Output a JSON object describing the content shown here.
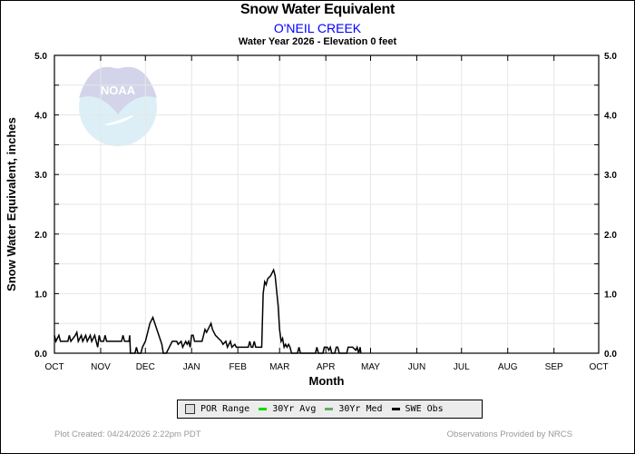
{
  "colors": {
    "obs": "#000000",
    "avg": "#00dd00",
    "med": "#66aa66",
    "station": "#0000ff"
  },
  "footer": {
    "created": "Plot Created: 04/24/2026 2:22pm PDT",
    "provider": "Observations Provided by NRCS"
  },
  "logo_text": "NOAA",
  "chart_data": {
    "type": "line",
    "title": "Snow Water Equivalent",
    "station": "O'NEIL CREEK",
    "subtitle": "Water Year 2026 -  Elevation 0 feet",
    "xlabel": "Month",
    "ylabel": "Snow Water Equivalent, inches",
    "ylim": [
      0,
      5
    ],
    "xlim_days": [
      0,
      365
    ],
    "yticks": [
      "0.0",
      "1.0",
      "2.0",
      "3.0",
      "4.0",
      "5.0"
    ],
    "month_ticks": [
      {
        "label": "OCT",
        "day": 0
      },
      {
        "label": "NOV",
        "day": 31
      },
      {
        "label": "DEC",
        "day": 61
      },
      {
        "label": "JAN",
        "day": 92
      },
      {
        "label": "FEB",
        "day": 123
      },
      {
        "label": "MAR",
        "day": 151
      },
      {
        "label": "APR",
        "day": 182
      },
      {
        "label": "MAY",
        "day": 212
      },
      {
        "label": "JUN",
        "day": 243
      },
      {
        "label": "JUL",
        "day": 273
      },
      {
        "label": "AUG",
        "day": 304
      },
      {
        "label": "SEP",
        "day": 335
      },
      {
        "label": "OCT",
        "day": 365
      }
    ],
    "legend": [
      "POR Range",
      "30Yr Avg",
      "30Yr Med",
      "SWE Obs"
    ],
    "legend_placement": "bottom",
    "series": [
      {
        "name": "SWE Obs",
        "points": [
          [
            0,
            0.3
          ],
          [
            1,
            0.2
          ],
          [
            3,
            0.3
          ],
          [
            4,
            0.2
          ],
          [
            9,
            0.2
          ],
          [
            10,
            0.3
          ],
          [
            11,
            0.2
          ],
          [
            14,
            0.3
          ],
          [
            15,
            0.35
          ],
          [
            16,
            0.2
          ],
          [
            18,
            0.3
          ],
          [
            19,
            0.2
          ],
          [
            21,
            0.3
          ],
          [
            22,
            0.2
          ],
          [
            24,
            0.3
          ],
          [
            25,
            0.2
          ],
          [
            27,
            0.3
          ],
          [
            28,
            0.2
          ],
          [
            29,
            0.1
          ],
          [
            30,
            0.3
          ],
          [
            31,
            0.2
          ],
          [
            33,
            0.2
          ],
          [
            34,
            0.3
          ],
          [
            35,
            0.2
          ],
          [
            45,
            0.2
          ],
          [
            46,
            0.3
          ],
          [
            47,
            0.2
          ],
          [
            50,
            0.2
          ],
          [
            50.5,
            0.3
          ],
          [
            51,
            0.0
          ],
          [
            54,
            0.0
          ],
          [
            55,
            0.1
          ],
          [
            56,
            0.0
          ],
          [
            58,
            0.0
          ],
          [
            59,
            0.1
          ],
          [
            61,
            0.2
          ],
          [
            63,
            0.4
          ],
          [
            64,
            0.5
          ],
          [
            65,
            0.55
          ],
          [
            66,
            0.6
          ],
          [
            68,
            0.45
          ],
          [
            70,
            0.3
          ],
          [
            72,
            0.15
          ],
          [
            73,
            0.0
          ],
          [
            75,
            0.0
          ],
          [
            77,
            0.1
          ],
          [
            79,
            0.2
          ],
          [
            82,
            0.2
          ],
          [
            83,
            0.15
          ],
          [
            85,
            0.2
          ],
          [
            86,
            0.1
          ],
          [
            88,
            0.2
          ],
          [
            89,
            0.15
          ],
          [
            90,
            0.2
          ],
          [
            91,
            0.1
          ],
          [
            92,
            0.3
          ],
          [
            93,
            0.3
          ],
          [
            94,
            0.2
          ],
          [
            99,
            0.2
          ],
          [
            100,
            0.3
          ],
          [
            101,
            0.4
          ],
          [
            102,
            0.35
          ],
          [
            103,
            0.4
          ],
          [
            105,
            0.5
          ],
          [
            106,
            0.4
          ],
          [
            108,
            0.3
          ],
          [
            110,
            0.25
          ],
          [
            112,
            0.2
          ],
          [
            113,
            0.15
          ],
          [
            115,
            0.2
          ],
          [
            116,
            0.1
          ],
          [
            118,
            0.2
          ],
          [
            119,
            0.1
          ],
          [
            121,
            0.15
          ],
          [
            122,
            0.1
          ],
          [
            130,
            0.1
          ],
          [
            131,
            0.2
          ],
          [
            132,
            0.1
          ],
          [
            133,
            0.1
          ],
          [
            134,
            0.2
          ],
          [
            135,
            0.1
          ],
          [
            139,
            0.1
          ],
          [
            140,
            1.0
          ],
          [
            141,
            1.2
          ],
          [
            142,
            1.15
          ],
          [
            143,
            1.25
          ],
          [
            145,
            1.3
          ],
          [
            146,
            1.35
          ],
          [
            147,
            1.4
          ],
          [
            148,
            1.3
          ],
          [
            150,
            0.8
          ],
          [
            151,
            0.4
          ],
          [
            152,
            0.2
          ],
          [
            153,
            0.25
          ],
          [
            154,
            0.1
          ],
          [
            155,
            0.15
          ],
          [
            156,
            0.1
          ],
          [
            157,
            0.15
          ],
          [
            158,
            0.1
          ],
          [
            159,
            0.0
          ],
          [
            163,
            0.0
          ],
          [
            164,
            0.1
          ],
          [
            165,
            0.0
          ],
          [
            175,
            0.0
          ],
          [
            176,
            0.1
          ],
          [
            177,
            0.0
          ],
          [
            180,
            0.0
          ],
          [
            181,
            0.1
          ],
          [
            183,
            0.1
          ],
          [
            184,
            0.05
          ],
          [
            185,
            0.1
          ],
          [
            186,
            0.0
          ],
          [
            188,
            0.0
          ],
          [
            189,
            0.1
          ],
          [
            190,
            0.1
          ],
          [
            191,
            0.0
          ],
          [
            196,
            0.0
          ],
          [
            197,
            0.1
          ],
          [
            200,
            0.1
          ],
          [
            202,
            0.05
          ],
          [
            203,
            0.1
          ],
          [
            204,
            0.0
          ],
          [
            205,
            0.1
          ],
          [
            205.5,
            0.0
          ]
        ]
      }
    ]
  }
}
